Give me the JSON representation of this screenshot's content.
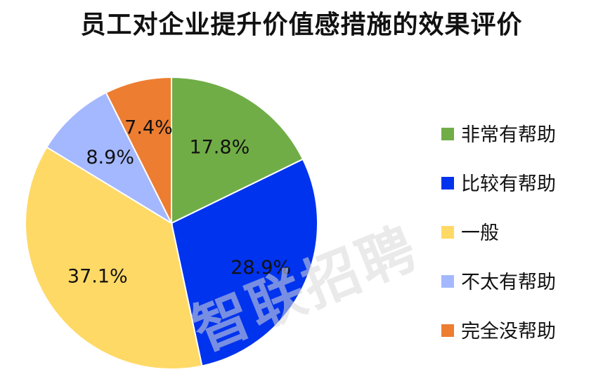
{
  "chart_data": {
    "type": "pie",
    "title": "员工对企业提升价值感措施的效果评价",
    "categories": [
      "非常有帮助",
      "比较有帮助",
      "一般",
      "不太有帮助",
      "完全没帮助"
    ],
    "values": [
      17.8,
      28.9,
      37.1,
      8.9,
      7.4
    ],
    "value_labels": [
      "17.8%",
      "28.9%",
      "37.1%",
      "8.9%",
      "7.4%"
    ],
    "colors": [
      "#70ad47",
      "#0033ee",
      "#ffd966",
      "#a4b8ff",
      "#ed7d31"
    ],
    "legend_position": "right",
    "start_angle_deg": 0,
    "direction": "clockwise"
  },
  "watermark": "智联招聘"
}
